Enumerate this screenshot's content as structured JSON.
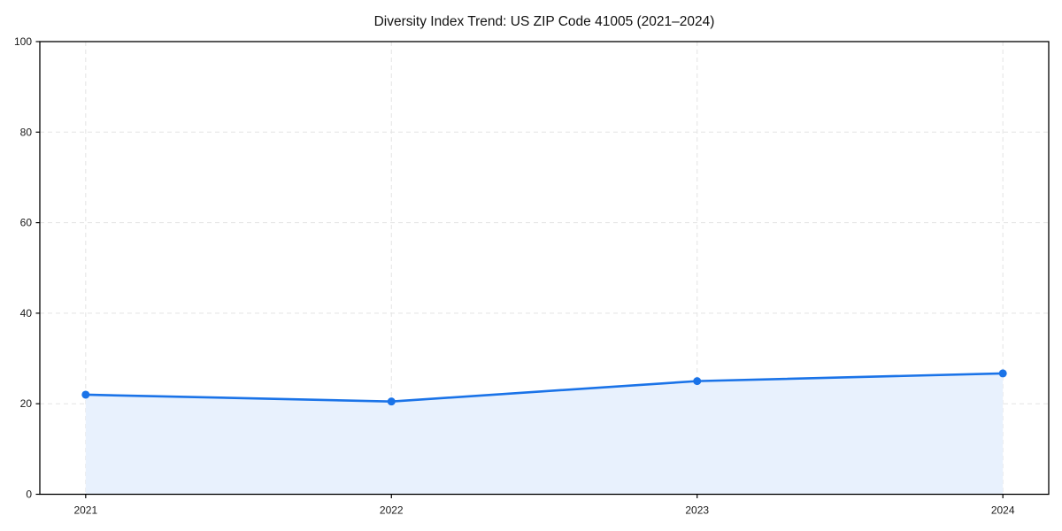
{
  "page": {
    "background": "#ffffff"
  },
  "chart_data": {
    "type": "area",
    "title": "Diversity Index Trend: US ZIP Code 41005 (2021–2024)",
    "x": [
      2021,
      2022,
      2023,
      2024
    ],
    "xtick_labels": [
      "2021",
      "2022",
      "2023",
      "2024"
    ],
    "series": [
      {
        "name": "Diversity Index",
        "values": [
          22,
          20.5,
          25,
          26.7
        ]
      }
    ],
    "xlabel": "",
    "ylabel": "",
    "ylim": [
      0,
      100
    ],
    "yticks": [
      0,
      20,
      40,
      60,
      80,
      100
    ],
    "grid": "dashed, both horizontal and vertical gridlines",
    "legend": "none",
    "marker": "circle",
    "colors": {
      "line": "#1a73e8",
      "marker": "#1a73e8",
      "fill": "#e8f1fd",
      "grid": "#e3e3e3",
      "axis": "#000000",
      "text": "#1a1a1a"
    }
  }
}
